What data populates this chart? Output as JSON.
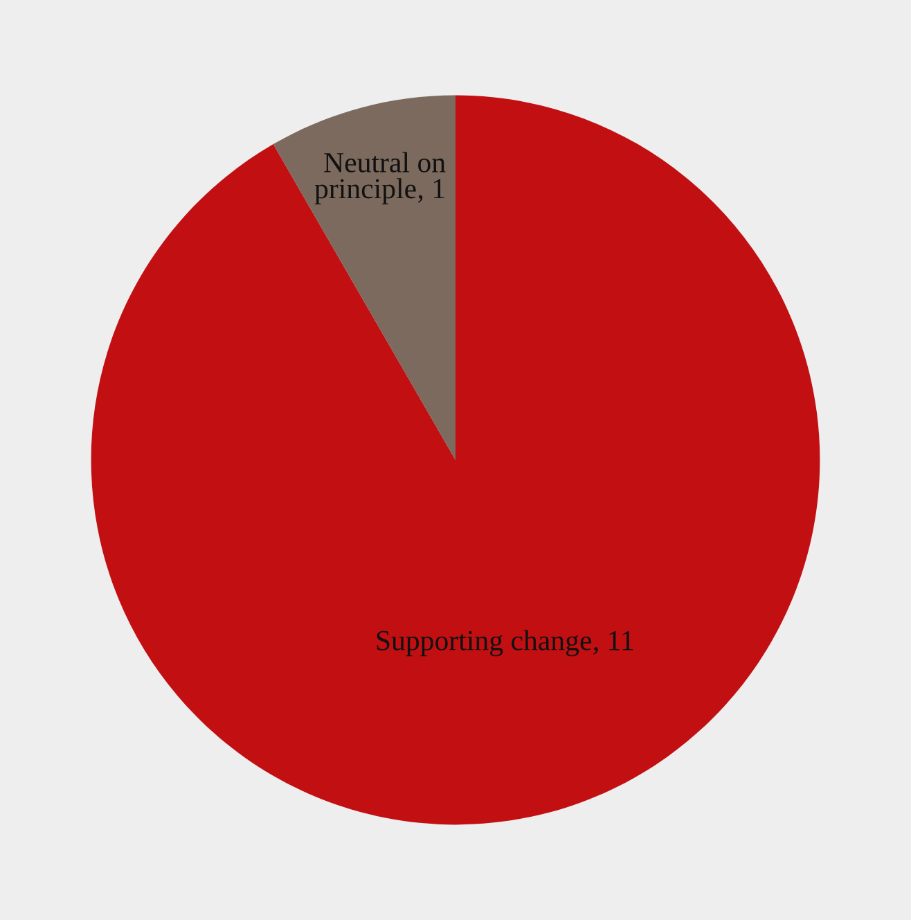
{
  "chart_data": {
    "type": "pie",
    "categories": [
      "Supporting change",
      "Neutral on principle"
    ],
    "values": [
      11,
      1
    ],
    "colors": [
      "#c20f12",
      "#7b6a5d"
    ],
    "value_labels": [
      ", 11",
      ", 1"
    ],
    "legend": false
  }
}
